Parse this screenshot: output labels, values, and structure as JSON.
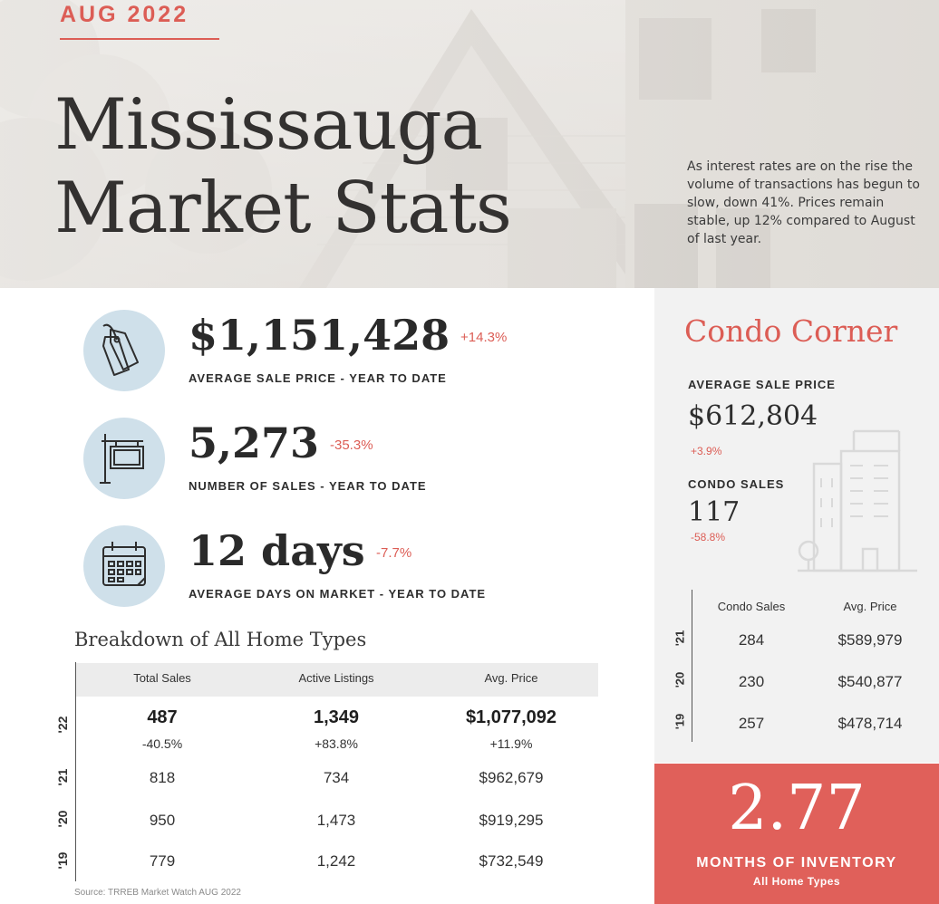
{
  "header": {
    "issue_date": "AUG 2022",
    "title_line1": "Mississauga",
    "title_line2": "Market Stats",
    "blurb": "As interest rates are on the rise the volume of transactions has begun to slow, down 41%.  Prices remain stable, up 12% compared to August of last year."
  },
  "stats": [
    {
      "value": "$1,151,428",
      "change": "+14.3%",
      "label": "AVERAGE SALE PRICE - YEAR TO DATE",
      "icon": "price-tag-icon"
    },
    {
      "value": "5,273",
      "change": "-35.3%",
      "label": "NUMBER OF SALES - YEAR TO DATE",
      "icon": "sale-sign-icon"
    },
    {
      "value": "12 days",
      "change": "-7.7%",
      "label": "AVERAGE DAYS ON MARKET - YEAR TO DATE",
      "icon": "calendar-icon"
    }
  ],
  "breakdown": {
    "title": "Breakdown of All Home Types",
    "columns": [
      "Total Sales",
      "Active Listings",
      "Avg. Price"
    ],
    "rows": [
      {
        "year": "'22",
        "total_sales": "487",
        "total_sales_change": "-40.5%",
        "active_listings": "1,349",
        "active_listings_change": "+83.8%",
        "avg_price": "$1,077,092",
        "avg_price_change": "+11.9%"
      },
      {
        "year": "'21",
        "total_sales": "818",
        "active_listings": "734",
        "avg_price": "$962,679"
      },
      {
        "year": "'20",
        "total_sales": "950",
        "active_listings": "1,473",
        "avg_price": "$919,295"
      },
      {
        "year": "'19",
        "total_sales": "779",
        "active_listings": "1,242",
        "avg_price": "$732,549"
      }
    ],
    "source": "Source: TRREB Market Watch AUG 2022"
  },
  "condo": {
    "title": "Condo Corner",
    "avg_price_label": "AVERAGE SALE PRICE",
    "avg_price": "$612,804",
    "avg_price_change": "+3.9%",
    "sales_label": "CONDO SALES",
    "sales": "117",
    "sales_change": "-58.8%",
    "table": {
      "columns": [
        "Condo Sales",
        "Avg. Price"
      ],
      "rows": [
        {
          "year": "'21",
          "sales": "284",
          "avg_price": "$589,979"
        },
        {
          "year": "'20",
          "sales": "230",
          "avg_price": "$540,877"
        },
        {
          "year": "'19",
          "sales": "257",
          "avg_price": "$478,714"
        }
      ]
    }
  },
  "inventory": {
    "value": "2.77",
    "label": "MONTHS OF INVENTORY",
    "sublabel": "All Home Types"
  },
  "colors": {
    "accent": "#dc5d55",
    "icon_circle": "#cfe0ea",
    "inventory_bg": "#e0605a",
    "panel_bg": "#f2f2f2"
  }
}
